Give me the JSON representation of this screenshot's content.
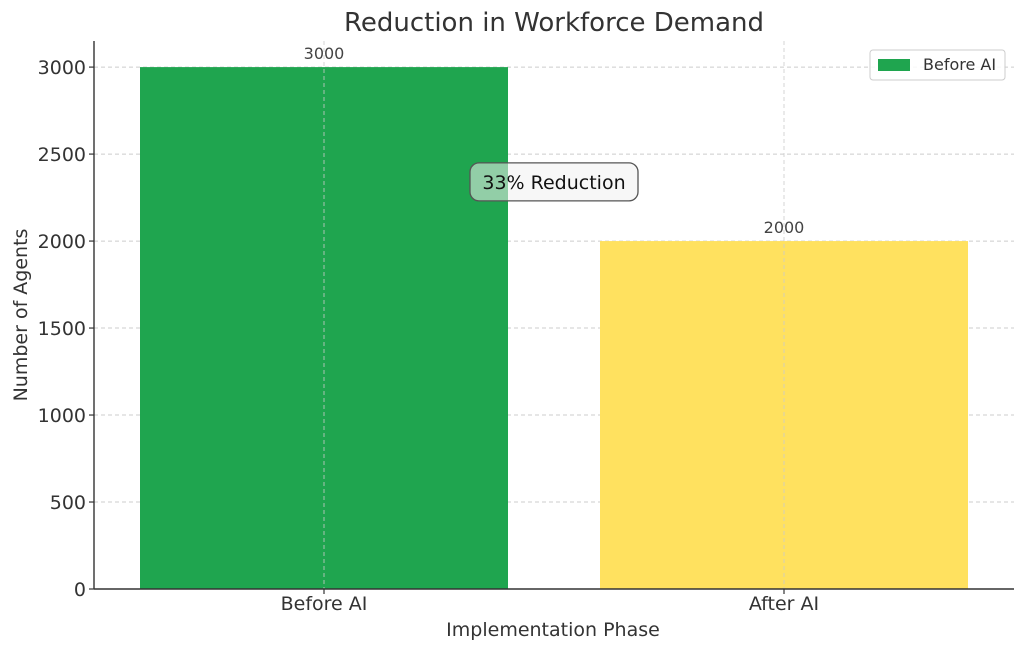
{
  "chart_data": {
    "type": "bar",
    "title": "Reduction in Workforce Demand",
    "xlabel": "Implementation Phase",
    "ylabel": "Number of Agents",
    "categories": [
      "Before AI",
      "After AI"
    ],
    "values": [
      3000,
      2000
    ],
    "data_labels": [
      "3000",
      "2000"
    ],
    "bar_colors": [
      "#1fa54f",
      "#ffe15f"
    ],
    "ylim": [
      0,
      3150
    ],
    "yticks": [
      0,
      500,
      1000,
      1500,
      2000,
      2500,
      3000
    ],
    "grid": true,
    "legend": {
      "position": "top-right",
      "entries": [
        {
          "label": "Before AI",
          "color": "#1fa54f"
        }
      ]
    },
    "annotation": {
      "text": "33% Reduction",
      "x": 0.5,
      "y": 2300
    }
  }
}
